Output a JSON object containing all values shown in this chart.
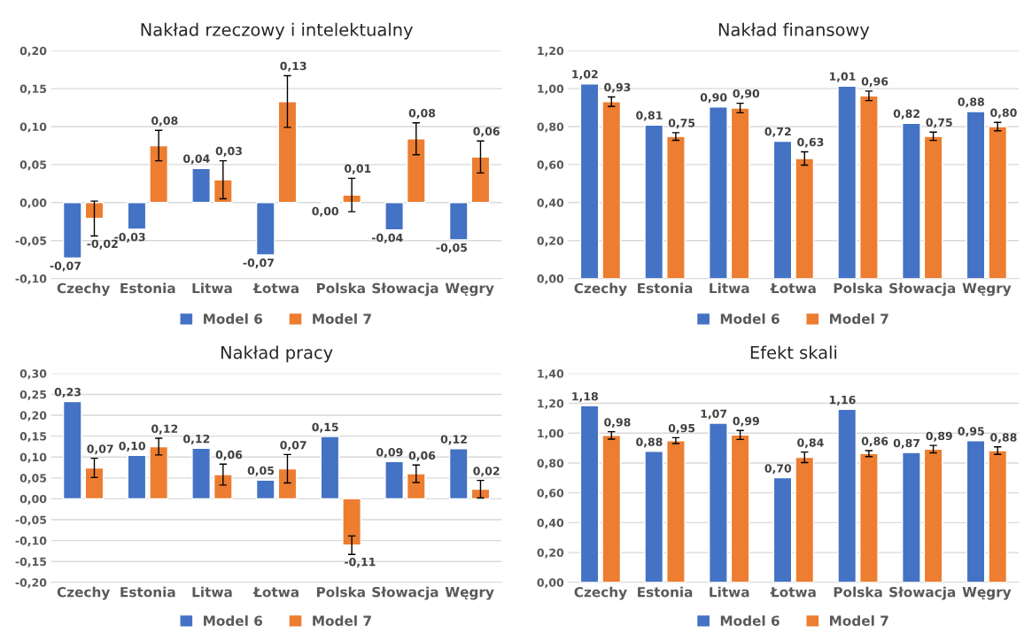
{
  "chart_data": [
    {
      "type": "bar",
      "title": "Nakład rzeczowy i intelektualny",
      "categories": [
        "Czechy",
        "Estonia",
        "Litwa",
        "Łotwa",
        "Polska",
        "Słowacja",
        "Węgry"
      ],
      "ylim": [
        -0.1,
        0.2
      ],
      "yticks": [
        {
          "value": -0.1,
          "label": "-0,10"
        },
        {
          "value": -0.05,
          "label": "-0,05"
        },
        {
          "value": 0,
          "label": "0,00"
        },
        {
          "value": 0.05,
          "label": "0,05"
        },
        {
          "value": 0.1,
          "label": "0,10"
        },
        {
          "value": 0.15,
          "label": "0,15"
        },
        {
          "value": 0.2,
          "label": "0,20"
        }
      ],
      "grid": "y",
      "legend": "bottom",
      "series": [
        {
          "name": "Model 6",
          "color": "#4472c4",
          "values": [
            -0.073,
            -0.035,
            0.045,
            -0.069,
            -0.001,
            -0.036,
            -0.049
          ],
          "value_labels": [
            "-0,07",
            "-0,03",
            "0,04",
            "-0,07",
            "0,00",
            "-0,04",
            "-0,05"
          ]
        },
        {
          "name": "Model 7",
          "color": "#ed7d31",
          "values": [
            -0.021,
            0.075,
            0.03,
            0.133,
            0.01,
            0.084,
            0.06
          ],
          "errors": [
            0.023,
            0.02,
            0.025,
            0.034,
            0.022,
            0.021,
            0.021
          ],
          "value_labels": [
            "-0,02",
            "0,08",
            "0,03",
            "0,13",
            "0,01",
            "0,08",
            "0,06"
          ]
        }
      ]
    },
    {
      "type": "bar",
      "title": "Nakład finansowy",
      "categories": [
        "Czechy",
        "Estonia",
        "Litwa",
        "Łotwa",
        "Polska",
        "Słowacja",
        "Węgry"
      ],
      "ylim": [
        0,
        1.2
      ],
      "yticks": [
        {
          "value": 0,
          "label": "0,00"
        },
        {
          "value": 0.2,
          "label": "0,20"
        },
        {
          "value": 0.4,
          "label": "0,40"
        },
        {
          "value": 0.6,
          "label": "0,60"
        },
        {
          "value": 0.8,
          "label": "0,80"
        },
        {
          "value": 1.0,
          "label": "1,00"
        },
        {
          "value": 1.2,
          "label": "1,20"
        }
      ],
      "grid": "y",
      "legend": "bottom",
      "series": [
        {
          "name": "Model 6",
          "color": "#4472c4",
          "values": [
            1.025,
            0.808,
            0.903,
            0.723,
            1.013,
            0.817,
            0.879
          ],
          "value_labels": [
            "1,02",
            "0,81",
            "0,90",
            "0,72",
            "1,01",
            "0,82",
            "0,88"
          ]
        },
        {
          "name": "Model 7",
          "color": "#ed7d31",
          "values": [
            0.931,
            0.748,
            0.898,
            0.632,
            0.962,
            0.749,
            0.8
          ],
          "errors": [
            0.025,
            0.02,
            0.025,
            0.035,
            0.025,
            0.022,
            0.022
          ],
          "value_labels": [
            "0,93",
            "0,75",
            "0,90",
            "0,63",
            "0,96",
            "0,75",
            "0,80"
          ]
        }
      ]
    },
    {
      "type": "bar",
      "title": "Nakład pracy",
      "categories": [
        "Czechy",
        "Estonia",
        "Litwa",
        "Łotwa",
        "Polska",
        "Słowacja",
        "Węgry"
      ],
      "ylim": [
        -0.2,
        0.3
      ],
      "yticks": [
        {
          "value": -0.2,
          "label": "-0,20"
        },
        {
          "value": -0.15,
          "label": "-0,15"
        },
        {
          "value": -0.1,
          "label": "-0,10"
        },
        {
          "value": -0.05,
          "label": "-0,05"
        },
        {
          "value": 0,
          "label": "0,00"
        },
        {
          "value": 0.05,
          "label": "0,05"
        },
        {
          "value": 0.1,
          "label": "0,10"
        },
        {
          "value": 0.15,
          "label": "0,15"
        },
        {
          "value": 0.2,
          "label": "0,20"
        },
        {
          "value": 0.25,
          "label": "0,25"
        },
        {
          "value": 0.3,
          "label": "0,30"
        }
      ],
      "grid": "y",
      "legend": "bottom",
      "series": [
        {
          "name": "Model 6",
          "color": "#4472c4",
          "values": [
            0.233,
            0.104,
            0.121,
            0.045,
            0.149,
            0.089,
            0.12
          ],
          "value_labels": [
            "0,23",
            "0,10",
            "0,12",
            "0,05",
            "0,15",
            "0,09",
            "0,12"
          ]
        },
        {
          "name": "Model 7",
          "color": "#ed7d31",
          "values": [
            0.074,
            0.125,
            0.058,
            0.072,
            -0.111,
            0.06,
            0.023
          ],
          "errors": [
            0.023,
            0.02,
            0.025,
            0.034,
            0.022,
            0.021,
            0.021
          ],
          "value_labels": [
            "0,07",
            "0,12",
            "0,06",
            "0,07",
            "-0,11",
            "0,06",
            "0,02"
          ]
        }
      ]
    },
    {
      "type": "bar",
      "title": "Efekt skali",
      "categories": [
        "Czechy",
        "Estonia",
        "Litwa",
        "Łotwa",
        "Polska",
        "Słowacja",
        "Węgry"
      ],
      "ylim": [
        0,
        1.4
      ],
      "yticks": [
        {
          "value": 0,
          "label": "0,00"
        },
        {
          "value": 0.2,
          "label": "0,20"
        },
        {
          "value": 0.4,
          "label": "0,40"
        },
        {
          "value": 0.6,
          "label": "0,60"
        },
        {
          "value": 0.8,
          "label": "0,80"
        },
        {
          "value": 1.0,
          "label": "1,00"
        },
        {
          "value": 1.2,
          "label": "1,20"
        },
        {
          "value": 1.4,
          "label": "1,40"
        }
      ],
      "grid": "y",
      "legend": "bottom",
      "series": [
        {
          "name": "Model 6",
          "color": "#4472c4",
          "values": [
            1.183,
            0.878,
            1.067,
            0.701,
            1.16,
            0.87,
            0.95
          ],
          "value_labels": [
            "1,18",
            "0,88",
            "1,07",
            "0,70",
            "1,16",
            "0,87",
            "0,95"
          ]
        },
        {
          "name": "Model 7",
          "color": "#ed7d31",
          "values": [
            0.985,
            0.95,
            0.988,
            0.838,
            0.863,
            0.893,
            0.883
          ],
          "errors": [
            0.025,
            0.02,
            0.03,
            0.035,
            0.02,
            0.025,
            0.025
          ],
          "value_labels": [
            "0,98",
            "0,95",
            "0,99",
            "0,84",
            "0,86",
            "0,89",
            "0,88"
          ]
        }
      ]
    }
  ]
}
